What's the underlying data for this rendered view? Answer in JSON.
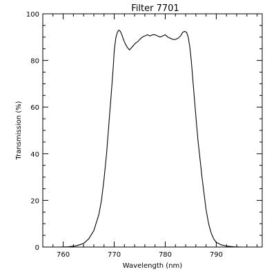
{
  "chart_data": {
    "type": "line",
    "title": "Filter 7701",
    "xlabel": "Wavelength (nm)",
    "ylabel": "Transmission (%)",
    "xlim": [
      756,
      799
    ],
    "ylim": [
      0,
      100
    ],
    "x_ticks": [
      760,
      770,
      780,
      790
    ],
    "x_tick_labels": [
      "760",
      "770",
      "780",
      "790"
    ],
    "y_ticks": [
      0,
      20,
      40,
      60,
      80,
      100
    ],
    "y_tick_labels": [
      "0",
      "20",
      "40",
      "60",
      "80",
      "100"
    ],
    "grid": false,
    "line_color": "#000000",
    "series": [
      {
        "x": [
          759.0,
          761.0,
          762.5,
          764.0,
          765.0,
          766.0,
          767.0,
          767.5,
          768.0,
          768.5,
          769.0,
          769.5,
          769.8,
          770.0,
          770.3,
          770.6,
          770.9,
          771.2,
          771.5,
          771.8,
          772.2,
          772.6,
          773.0,
          773.4,
          773.8,
          774.2,
          774.6,
          775.0,
          775.5,
          776.0,
          776.5,
          777.0,
          777.5,
          778.0,
          778.5,
          779.0,
          779.5,
          780.0,
          780.5,
          781.0,
          781.5,
          782.0,
          782.5,
          783.0,
          783.4,
          783.8,
          784.2,
          784.5,
          784.8,
          785.1,
          785.4,
          785.7,
          786.0,
          786.4,
          786.8,
          787.2,
          787.6,
          788.0,
          788.5,
          789.0,
          789.5,
          790.0,
          791.0,
          792.0,
          793.5,
          795.0,
          797.5
        ],
        "y": [
          0.0,
          0.1,
          0.5,
          1.5,
          3.5,
          7.0,
          14.0,
          20.0,
          29.0,
          40.0,
          54.0,
          68.0,
          77.0,
          84.0,
          89.5,
          92.0,
          93.0,
          92.5,
          91.0,
          89.0,
          87.0,
          85.5,
          84.5,
          85.5,
          86.5,
          87.5,
          88.0,
          89.0,
          90.0,
          90.5,
          91.0,
          90.5,
          91.0,
          91.0,
          90.5,
          90.0,
          90.5,
          91.0,
          90.0,
          89.5,
          89.0,
          89.0,
          89.5,
          90.5,
          92.0,
          92.5,
          92.0,
          90.0,
          86.0,
          80.0,
          72.0,
          64.0,
          56.0,
          46.0,
          38.0,
          30.0,
          23.0,
          16.0,
          10.0,
          6.0,
          3.5,
          2.0,
          0.9,
          0.4,
          0.1,
          0.0,
          0.0
        ]
      }
    ]
  }
}
